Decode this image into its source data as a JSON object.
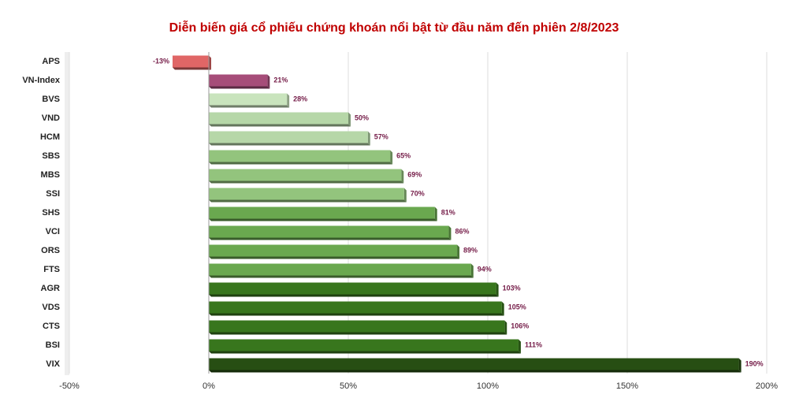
{
  "chart_data": {
    "type": "bar",
    "orientation": "horizontal",
    "title": "Diễn biến giá cổ phiếu chứng khoán nổi bật từ đầu năm đến phiên 2/8/2023",
    "categories": [
      "APS",
      "VN-Index",
      "BVS",
      "VND",
      "HCM",
      "SBS",
      "MBS",
      "SSI",
      "SHS",
      "VCI",
      "ORS",
      "FTS",
      "AGR",
      "VDS",
      "CTS",
      "BSI",
      "VIX"
    ],
    "values": [
      -13,
      21,
      28,
      50,
      57,
      65,
      69,
      70,
      81,
      86,
      89,
      94,
      103,
      105,
      106,
      111,
      190
    ],
    "value_labels": [
      "-13%",
      "21%",
      "28%",
      "50%",
      "57%",
      "65%",
      "69%",
      "70%",
      "81%",
      "86%",
      "89%",
      "94%",
      "103%",
      "105%",
      "106%",
      "111%",
      "190%"
    ],
    "colors": [
      "#e06666",
      "#a64d79",
      "#c9e4bd",
      "#b6d7a8",
      "#b6d7a8",
      "#93c47d",
      "#93c47d",
      "#93c47d",
      "#6aa84f",
      "#6aa84f",
      "#6aa84f",
      "#6aa84f",
      "#38761d",
      "#38761d",
      "#38761d",
      "#38761d",
      "#274e13"
    ],
    "xlim": [
      -50,
      200
    ],
    "xticks": [
      {
        "value": -50,
        "label": "-50%"
      },
      {
        "value": 0,
        "label": "0%"
      },
      {
        "value": 50,
        "label": "50%"
      },
      {
        "value": 100,
        "label": "100%"
      },
      {
        "value": 150,
        "label": "150%"
      },
      {
        "value": 200,
        "label": "200%"
      }
    ],
    "grid": true
  }
}
